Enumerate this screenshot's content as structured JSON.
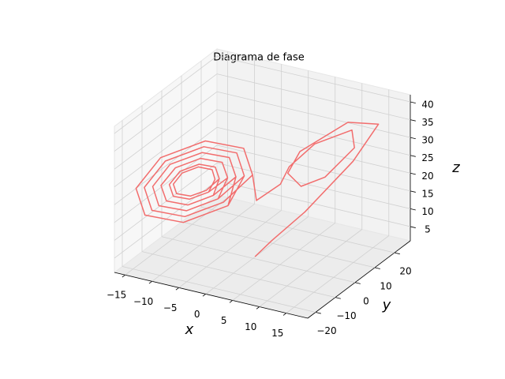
{
  "chart_data": {
    "type": "line3d",
    "title": "Diagrama de fase",
    "xlabel": "x",
    "ylabel": "y",
    "zlabel": "z",
    "color": "#f26d6d",
    "grid": true,
    "xlim": [
      -17,
      19
    ],
    "ylim": [
      -24,
      28
    ],
    "zlim": [
      1,
      42
    ],
    "xticks": [
      {
        "value": -15,
        "label": "−15"
      },
      {
        "value": -10,
        "label": "−10"
      },
      {
        "value": -5,
        "label": "−5"
      },
      0,
      5,
      10,
      15
    ],
    "yticks": [
      {
        "value": -20,
        "label": "−20"
      },
      {
        "value": -10,
        "label": "−10"
      },
      0,
      10,
      20
    ],
    "zticks": [
      5,
      10,
      15,
      20,
      25,
      30,
      35,
      40
    ],
    "x": [
      0,
      2,
      6,
      12,
      16,
      14,
      8,
      5,
      6,
      9,
      13,
      14,
      10,
      6,
      4,
      1,
      -1,
      -3,
      -8,
      -13,
      -15,
      -13,
      -8,
      -3,
      -3,
      -4.5,
      -8,
      -11.6,
      -13,
      -11.6,
      -8,
      -4.5,
      -4,
      -5.2,
      -8,
      -10.8,
      -12,
      -10.8,
      -8,
      -5.2,
      -5,
      -5.9,
      -8,
      -10.1,
      -11,
      -10.1,
      -8,
      -5.9,
      -5.5,
      -6.2,
      -8,
      -9.8,
      -10.5,
      -9.8,
      -8,
      -6.2,
      -5,
      -5.9,
      -8,
      -10.1,
      -11,
      -10.1,
      -8,
      -5.9,
      -4,
      -5.2,
      -8,
      -10.8,
      -12,
      -10.8,
      -8,
      -5.2,
      -3,
      -4.5,
      -8,
      -11.6,
      -13,
      -11.6,
      -8,
      -4.5,
      -2,
      -3.7,
      -8,
      -12.3,
      -14,
      -12.3,
      -8,
      -3.7,
      -1,
      -3,
      -8,
      -13,
      -15,
      -13,
      -8,
      -3,
      -2,
      -3.7,
      -8,
      -12.3,
      -14,
      -12.3,
      -8,
      -3.7
    ],
    "y": [
      1,
      4,
      10,
      18,
      20,
      10,
      2,
      4,
      8,
      12,
      16,
      12,
      4,
      2,
      3,
      -1,
      2.5,
      3.4,
      -2.4,
      -11.5,
      -18.5,
      -19.4,
      -13.6,
      -4.5,
      -0.5,
      0.2,
      -4,
      -10.5,
      -15.5,
      -16.2,
      -12,
      -5.5,
      -2,
      -1.5,
      -4.8,
      -10,
      -14,
      -14.5,
      -11.2,
      -6,
      -3.5,
      -3.1,
      -5.6,
      -9.5,
      -12.5,
      -12.9,
      -10.4,
      -6.5,
      -4.3,
      -3.9,
      -6,
      -9.3,
      -11.8,
      -12.1,
      -10,
      -6.8,
      -3.5,
      -3.1,
      -5.6,
      -9.5,
      -12.5,
      -12.9,
      -10.4,
      -6.5,
      -2,
      -1.5,
      -4.8,
      -10,
      -14,
      -14.5,
      -11.2,
      -6,
      -0.5,
      0.2,
      -4,
      -10.5,
      -15.5,
      -16.2,
      -12,
      -5.5,
      1,
      1.8,
      -3.2,
      -11,
      -17,
      -17.8,
      -12.8,
      -5,
      2.5,
      3.4,
      -2.4,
      -11.5,
      -18.5,
      -19.4,
      -13.6,
      -4.5,
      1,
      1.8,
      -3.2,
      -11,
      -17,
      -17.8,
      -12.8,
      -5
    ],
    "z": [
      1.05,
      5,
      12,
      25,
      36,
      40,
      33,
      25,
      20,
      22,
      30,
      37,
      35,
      28,
      22,
      18,
      23,
      29.4,
      32.1,
      29.4,
      23,
      16.6,
      13.9,
      16.6,
      23,
      27.6,
      29.5,
      27.6,
      23,
      18.4,
      16.5,
      18.4,
      23,
      26.7,
      28.2,
      26.7,
      23,
      19.3,
      17.8,
      19.3,
      23,
      25.8,
      26.9,
      25.8,
      23,
      20.2,
      19.1,
      20.2,
      23,
      25.3,
      26.3,
      25.3,
      23,
      20.7,
      19.8,
      20.7,
      23,
      25.8,
      26.9,
      25.8,
      23,
      20.2,
      19.1,
      20.2,
      23,
      26.7,
      28.2,
      26.7,
      23,
      19.3,
      17.8,
      19.3,
      23,
      27.6,
      29.5,
      27.6,
      23,
      18.4,
      16.5,
      18.4,
      23,
      28.5,
      30.8,
      28.5,
      23,
      17.5,
      15.2,
      17.5,
      23,
      29.4,
      32.1,
      29.4,
      23,
      16.6,
      13.9,
      16.6,
      23,
      28.5,
      30.8,
      28.5,
      23,
      17.5,
      15.2,
      17.5
    ]
  }
}
